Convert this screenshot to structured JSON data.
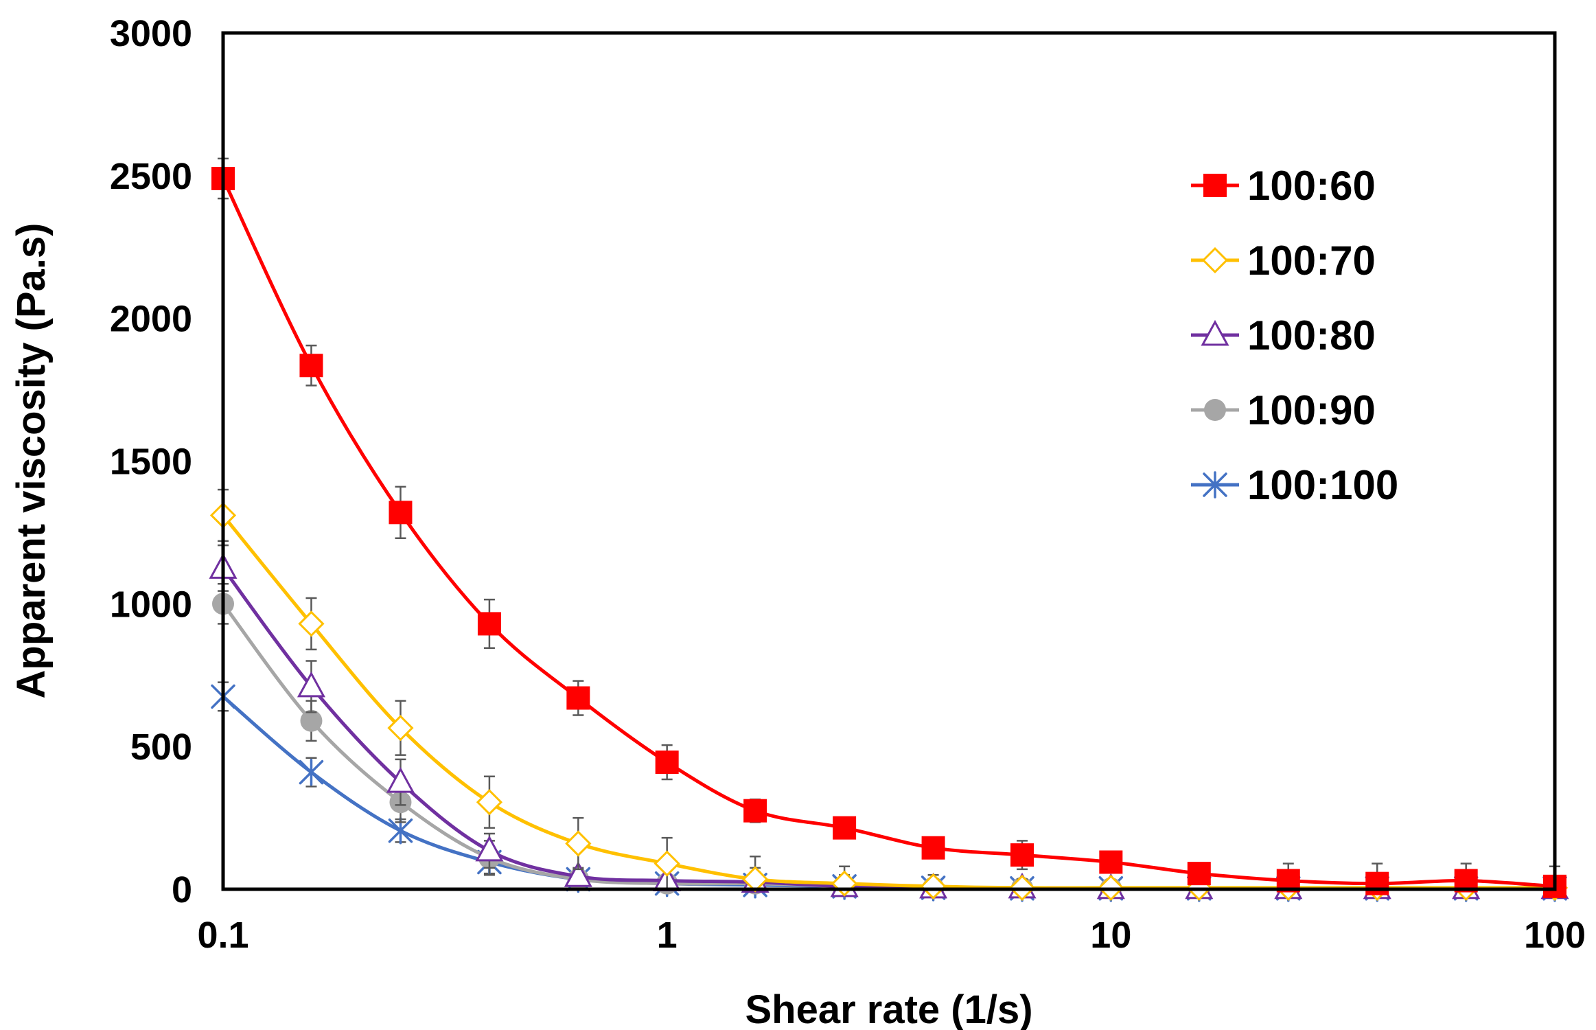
{
  "chart_data": {
    "type": "line",
    "title": "",
    "xlabel": "Shear rate (1/s)",
    "ylabel": "Apparent viscosity (Pa.s)",
    "xscale": "log",
    "xlim": [
      0.1,
      100
    ],
    "ylim": [
      0,
      3000
    ],
    "x_ticks": [
      0.1,
      1,
      10,
      100
    ],
    "x_tick_labels": [
      "0.1",
      "1",
      "10",
      "100"
    ],
    "y_ticks": [
      0,
      500,
      1000,
      1500,
      2000,
      2500,
      3000
    ],
    "y_tick_labels": [
      "0",
      "500",
      "1000",
      "1500",
      "2000",
      "2500",
      "3000"
    ],
    "legend_position": "top-right",
    "x": [
      0.1,
      0.158,
      0.251,
      0.398,
      0.631,
      1,
      1.58,
      2.51,
      3.98,
      6.31,
      10,
      15.8,
      25.1,
      39.8,
      63.1,
      100
    ],
    "series": [
      {
        "name": "100:60",
        "color": "#FF0000",
        "marker": "square-filled",
        "values": [
          2490,
          1835,
          1320,
          930,
          670,
          445,
          275,
          215,
          145,
          120,
          95,
          55,
          30,
          20,
          30,
          10
        ],
        "errors": [
          70,
          70,
          90,
          85,
          60,
          60,
          40,
          30,
          25,
          50,
          20,
          15,
          60,
          70,
          60,
          70
        ]
      },
      {
        "name": "100:70",
        "color": "#FFC000",
        "marker": "diamond-open",
        "values": [
          1310,
          930,
          565,
          305,
          160,
          90,
          35,
          20,
          10,
          5,
          5,
          5,
          5,
          5,
          5,
          5
        ],
        "errors": [
          90,
          90,
          95,
          90,
          90,
          90,
          80,
          60,
          40,
          30,
          20,
          20,
          20,
          20,
          20,
          20
        ]
      },
      {
        "name": "100:80",
        "color": "#7030A0",
        "marker": "triangle-open",
        "values": [
          1125,
          710,
          375,
          135,
          45,
          30,
          25,
          10,
          5,
          5,
          3,
          3,
          3,
          3,
          3,
          3
        ],
        "errors": [
          80,
          90,
          80,
          60,
          30,
          40,
          50,
          40,
          30,
          20,
          10,
          10,
          10,
          10,
          10,
          10
        ]
      },
      {
        "name": "100:90",
        "color": "#A6A6A6",
        "marker": "circle-filled",
        "values": [
          1000,
          590,
          305,
          110,
          35,
          20,
          20,
          10,
          5,
          5,
          3,
          3,
          3,
          3,
          3,
          3
        ],
        "errors": [
          70,
          70,
          70,
          60,
          30,
          30,
          40,
          30,
          20,
          20,
          10,
          10,
          10,
          10,
          10,
          10
        ]
      },
      {
        "name": "100:100",
        "color": "#4472C4",
        "marker": "asterisk",
        "values": [
          675,
          410,
          205,
          95,
          35,
          20,
          15,
          10,
          5,
          3,
          3,
          3,
          3,
          3,
          3,
          3
        ],
        "errors": [
          50,
          50,
          40,
          40,
          30,
          30,
          40,
          30,
          20,
          20,
          10,
          10,
          10,
          10,
          10,
          10
        ]
      }
    ]
  }
}
